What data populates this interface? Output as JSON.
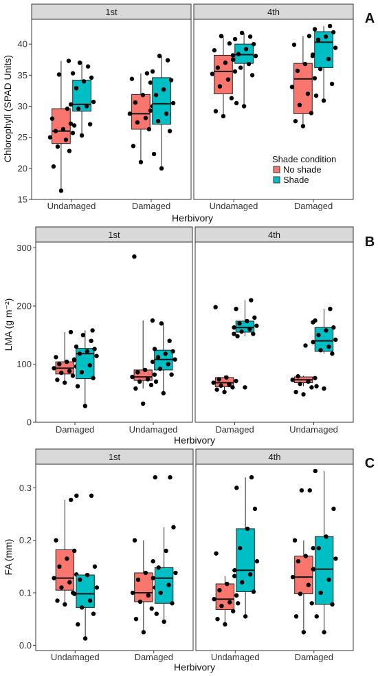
{
  "colors": {
    "No shade": "#F8766D",
    "Shade": "#00BFC4",
    "strip": "#D9D9D9"
  },
  "legend": {
    "title": "Shade condition",
    "items": [
      "No shade",
      "Shade"
    ]
  },
  "chart_data": [
    {
      "type": "boxplot",
      "label": "A",
      "ylabel": "Chlorophyll (SPAD Units)",
      "xlabel": "Herbivory",
      "ylim": [
        15,
        44
      ],
      "yticks": [
        15,
        20,
        25,
        30,
        35,
        40
      ],
      "facets": [
        {
          "title": "1st",
          "categories": [
            "Undamaged",
            "Damaged"
          ],
          "groups": [
            {
              "category": "Undamaged",
              "condition": "No shade",
              "min": 16.4,
              "q1": 24.0,
              "median": 26.0,
              "q3": 29.6,
              "max": 37.3,
              "points": [
                16.4,
                20.3,
                22.8,
                23.5,
                24.6,
                25.0,
                25.7,
                26.0,
                26.3,
                27.2,
                28.0,
                29.6,
                35.1,
                37.3
              ]
            },
            {
              "category": "Undamaged",
              "condition": "Shade",
              "min": 25.3,
              "q1": 29.2,
              "median": 30.3,
              "q3": 34.2,
              "max": 37.2,
              "points": [
                25.3,
                26.9,
                27.1,
                29.6,
                30.0,
                30.3,
                30.7,
                32.9,
                34.0,
                34.6,
                35.3,
                36.4,
                37.0
              ]
            },
            {
              "category": "Damaged",
              "condition": "No shade",
              "min": 21.0,
              "q1": 26.3,
              "median": 28.8,
              "q3": 31.9,
              "max": 35.3,
              "points": [
                21.0,
                23.6,
                26.3,
                27.4,
                28.1,
                28.8,
                30.0,
                30.6,
                31.8,
                33.8,
                34.4,
                35.3
              ]
            },
            {
              "category": "Damaged",
              "condition": "Shade",
              "min": 20.0,
              "q1": 27.1,
              "median": 30.4,
              "q3": 34.6,
              "max": 38.1,
              "points": [
                20.0,
                22.3,
                26.0,
                27.6,
                28.8,
                29.3,
                30.5,
                31.8,
                32.7,
                34.2,
                35.6,
                37.4,
                38.1
              ]
            }
          ]
        },
        {
          "title": "4th",
          "categories": [
            "Undamaged",
            "Damaged"
          ],
          "groups": [
            {
              "category": "Undamaged",
              "condition": "No shade",
              "min": 28.4,
              "q1": 32.0,
              "median": 35.6,
              "q3": 38.2,
              "max": 41.3,
              "points": [
                28.4,
                29.2,
                31.3,
                33.2,
                34.3,
                35.2,
                35.6,
                36.2,
                37.0,
                38.2,
                39.0,
                40.1,
                41.3
              ]
            },
            {
              "category": "Undamaged",
              "condition": "Shade",
              "min": 30.0,
              "q1": 36.9,
              "median": 38.3,
              "q3": 40.0,
              "max": 41.8,
              "points": [
                30.0,
                30.5,
                35.0,
                36.2,
                36.8,
                37.5,
                38.1,
                38.4,
                39.2,
                40.0,
                40.8,
                41.2,
                41.8
              ]
            },
            {
              "category": "Damaged",
              "condition": "No shade",
              "min": 26.8,
              "q1": 28.8,
              "median": 34.4,
              "q3": 36.9,
              "max": 41.3,
              "points": [
                26.8,
                27.6,
                28.9,
                30.2,
                32.0,
                33.1,
                34.5,
                35.7,
                36.8,
                38.1,
                39.9,
                41.3
              ]
            },
            {
              "category": "Damaged",
              "condition": "Shade",
              "min": 30.9,
              "q1": 36.2,
              "median": 40.3,
              "q3": 42.0,
              "max": 42.9,
              "points": [
                30.9,
                31.7,
                33.6,
                36.0,
                37.6,
                38.3,
                39.4,
                40.7,
                41.2,
                41.9,
                42.4,
                42.9
              ]
            }
          ]
        }
      ]
    },
    {
      "type": "boxplot",
      "label": "B",
      "ylabel": "LMA (g m⁻²)",
      "xlabel": "Herbivory",
      "ylim": [
        0,
        310
      ],
      "yticks": [
        0,
        100,
        200,
        300
      ],
      "facets": [
        {
          "title": "1st",
          "categories": [
            "Damaged",
            "Undamaged"
          ],
          "groups": [
            {
              "category": "Damaged",
              "condition": "No shade",
              "min": 68,
              "q1": 83,
              "median": 93,
              "q3": 104,
              "max": 155,
              "points": [
                68,
                73,
                80,
                85,
                88,
                93,
                96,
                100,
                104,
                108,
                112,
                155
              ]
            },
            {
              "category": "Damaged",
              "condition": "Shade",
              "min": 28,
              "q1": 75,
              "median": 118,
              "q3": 127,
              "max": 158,
              "points": [
                28,
                62,
                76,
                86,
                98,
                107,
                114,
                118,
                122,
                126,
                130,
                140,
                150,
                158
              ]
            },
            {
              "category": "Undamaged",
              "condition": "No shade",
              "min": 58,
              "q1": 72,
              "median": 78,
              "q3": 90,
              "max": 175,
              "points": [
                32,
                58,
                64,
                70,
                74,
                78,
                82,
                86,
                90,
                175,
                285
              ]
            },
            {
              "category": "Undamaged",
              "condition": "Shade",
              "min": 50,
              "q1": 90,
              "median": 108,
              "q3": 124,
              "max": 170,
              "points": [
                50,
                70,
                82,
                92,
                100,
                104,
                108,
                112,
                118,
                122,
                126,
                140,
                170
              ]
            }
          ]
        },
        {
          "title": "4th",
          "categories": [
            "Damaged",
            "Undamaged"
          ],
          "groups": [
            {
              "category": "Damaged",
              "condition": "No shade",
              "min": 55,
              "q1": 61,
              "median": 68,
              "q3": 77,
              "max": 80,
              "points": [
                52,
                56,
                60,
                63,
                65,
                68,
                71,
                74,
                77,
                152,
                198
              ]
            },
            {
              "category": "Damaged",
              "condition": "Shade",
              "min": 148,
              "q1": 155,
              "median": 163,
              "q3": 174,
              "max": 210,
              "points": [
                60,
                148,
                152,
                156,
                160,
                163,
                166,
                170,
                174,
                180,
                195,
                210
              ]
            },
            {
              "category": "Undamaged",
              "condition": "No shade",
              "min": 62,
              "q1": 68,
              "median": 73,
              "q3": 78,
              "max": 80,
              "points": [
                48,
                52,
                60,
                66,
                70,
                73,
                76,
                79,
                132,
                172
              ]
            },
            {
              "category": "Undamaged",
              "condition": "Shade",
              "min": 118,
              "q1": 122,
              "median": 140,
              "q3": 163,
              "max": 195,
              "points": [
                58,
                62,
                118,
                124,
                130,
                138,
                142,
                150,
                158,
                163,
                175,
                195
              ]
            }
          ]
        }
      ]
    },
    {
      "type": "boxplot",
      "label": "C",
      "ylabel": "FA (mm)",
      "xlabel": "Herbivory",
      "ylim": [
        -0.01,
        0.345
      ],
      "yticks": [
        0.0,
        0.1,
        0.2,
        0.3
      ],
      "ytick_labels": [
        "0.0",
        "0.1",
        "0.2",
        "0.3"
      ],
      "facets": [
        {
          "title": "1st",
          "categories": [
            "Undamaged",
            "Damaged"
          ],
          "groups": [
            {
              "category": "Undamaged",
              "condition": "No shade",
              "min": 0.078,
              "q1": 0.105,
              "median": 0.128,
              "q3": 0.182,
              "max": 0.277,
              "points": [
                0.078,
                0.085,
                0.1,
                0.11,
                0.12,
                0.128,
                0.135,
                0.15,
                0.165,
                0.18,
                0.2,
                0.277
              ]
            },
            {
              "category": "Undamaged",
              "condition": "Shade",
              "min": 0.013,
              "q1": 0.072,
              "median": 0.098,
              "q3": 0.134,
              "max": 0.134,
              "points": [
                0.013,
                0.04,
                0.06,
                0.072,
                0.085,
                0.098,
                0.11,
                0.125,
                0.134,
                0.15,
                0.285,
                0.285
              ]
            },
            {
              "category": "Damaged",
              "condition": "No shade",
              "min": 0.025,
              "q1": 0.083,
              "median": 0.1,
              "q3": 0.138,
              "max": 0.2,
              "points": [
                0.025,
                0.05,
                0.07,
                0.083,
                0.095,
                0.1,
                0.11,
                0.125,
                0.138,
                0.16,
                0.2
              ]
            },
            {
              "category": "Damaged",
              "condition": "Shade",
              "min": 0.045,
              "q1": 0.08,
              "median": 0.128,
              "q3": 0.148,
              "max": 0.225,
              "points": [
                0.045,
                0.06,
                0.08,
                0.1,
                0.115,
                0.128,
                0.138,
                0.148,
                0.18,
                0.225,
                0.32,
                0.32
              ]
            }
          ]
        },
        {
          "title": "4th",
          "categories": [
            "Undamaged",
            "Damaged"
          ],
          "groups": [
            {
              "category": "Undamaged",
              "condition": "No shade",
              "min": 0.04,
              "q1": 0.068,
              "median": 0.088,
              "q3": 0.117,
              "max": 0.132,
              "points": [
                0.04,
                0.05,
                0.065,
                0.075,
                0.082,
                0.088,
                0.095,
                0.105,
                0.117,
                0.132,
                0.175
              ]
            },
            {
              "category": "Undamaged",
              "condition": "Shade",
              "min": 0.055,
              "q1": 0.102,
              "median": 0.143,
              "q3": 0.222,
              "max": 0.32,
              "points": [
                0.055,
                0.08,
                0.102,
                0.12,
                0.135,
                0.143,
                0.16,
                0.185,
                0.222,
                0.26,
                0.3,
                0.32
              ]
            },
            {
              "category": "Damaged",
              "condition": "No shade",
              "min": 0.025,
              "q1": 0.098,
              "median": 0.13,
              "q3": 0.17,
              "max": 0.2,
              "points": [
                0.025,
                0.055,
                0.08,
                0.098,
                0.115,
                0.13,
                0.145,
                0.16,
                0.17,
                0.185,
                0.2,
                0.295,
                0.295
              ]
            },
            {
              "category": "Damaged",
              "condition": "Shade",
              "min": 0.025,
              "q1": 0.078,
              "median": 0.145,
              "q3": 0.207,
              "max": 0.332,
              "points": [
                0.025,
                0.055,
                0.078,
                0.1,
                0.125,
                0.145,
                0.165,
                0.185,
                0.207,
                0.26,
                0.332
              ]
            }
          ]
        }
      ]
    }
  ]
}
